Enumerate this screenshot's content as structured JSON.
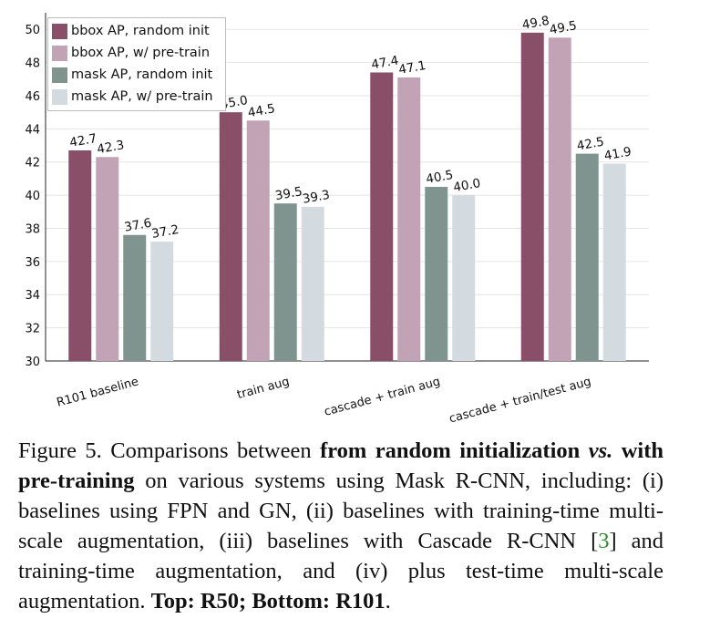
{
  "chart_data": {
    "type": "bar",
    "categories": [
      "R101 baseline",
      "train aug",
      "cascade + train aug",
      "cascade + train/test aug"
    ],
    "series": [
      {
        "name": "bbox AP, random init",
        "color": "#8a4f68",
        "values": [
          42.7,
          45.0,
          47.4,
          49.8
        ],
        "labels": [
          "42.7",
          "45.0",
          "47.4",
          "49.8"
        ]
      },
      {
        "name": "bbox AP, w/ pre-train",
        "color": "#c2a3b5",
        "values": [
          42.3,
          44.5,
          47.1,
          49.5
        ],
        "labels": [
          "42.3",
          "44.5",
          "47.1",
          "49.5"
        ]
      },
      {
        "name": "mask AP, random init",
        "color": "#7f948f",
        "values": [
          37.6,
          39.5,
          40.5,
          42.5
        ],
        "labels": [
          "37.6",
          "39.5",
          "40.5",
          "42.5"
        ]
      },
      {
        "name": "mask AP, w/ pre-train",
        "color": "#d3dbe0",
        "values": [
          37.2,
          39.3,
          40.0,
          41.9
        ],
        "labels": [
          "37.2",
          "39.3",
          "40.0",
          "41.9"
        ]
      }
    ],
    "ylim": [
      30,
      51
    ],
    "yticks": [
      "30",
      "32",
      "34",
      "36",
      "38",
      "40",
      "42",
      "44",
      "46",
      "48",
      "50"
    ],
    "grid": true,
    "legend_position": "top-left"
  },
  "caption": {
    "figure_label": "Figure 5.",
    "intro": " Comparisons between ",
    "bold_1": "from random initialization",
    "italic_vs": " vs.",
    "bold_2": " with pre-training",
    "body_1": " on various systems using Mask R-CNN, including: (i) baselines using FPN and GN, (ii) baselines with training-time multi-scale augmentation, (iii) baselines with Cascade R-CNN [",
    "citation": "3",
    "body_2": "] and training-time augmentation, and (iv) plus test-time multi-scale augmentation. ",
    "bold_3": "Top: R50; Bottom: R101",
    "end": "."
  }
}
